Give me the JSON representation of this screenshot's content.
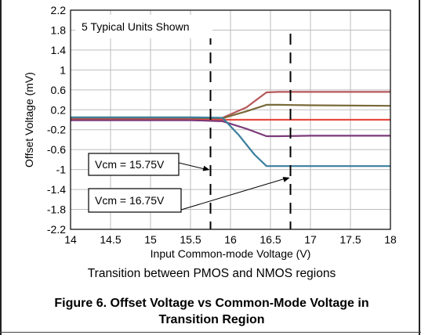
{
  "chart_data": {
    "type": "line",
    "title": "",
    "xlabel": "Input Common-mode Voltage (V)",
    "ylabel": "Offset Voltage (mV)",
    "xlim": [
      14,
      18
    ],
    "ylim": [
      -2.2,
      2.2
    ],
    "xticks": [
      14,
      14.5,
      15,
      15.5,
      16,
      16.5,
      17,
      17.5,
      18
    ],
    "xtick_labels": [
      "14",
      "14.5",
      "15",
      "15.5",
      "16",
      "16.5",
      "17",
      "17.5",
      "18"
    ],
    "yticks": [
      2.2,
      1.8,
      1.4,
      1,
      0.6,
      0.2,
      -0.2,
      -0.6,
      -1,
      -1.4,
      -1.8,
      -2.2
    ],
    "ytick_labels": [
      "2.2",
      "1.8",
      "1.4",
      "1",
      "0.6",
      "0.2",
      "-0.2",
      "-0.6",
      "-1",
      "-1.4",
      "-1.8",
      "-2.2"
    ],
    "grid": true,
    "annotation_box": "5 Typical Units Shown",
    "vlines": [
      {
        "x": 15.75,
        "label": "Vcm = 15.75V",
        "style": "dashed"
      },
      {
        "x": 16.75,
        "label": "Vcm = 16.75V",
        "style": "dashed"
      }
    ],
    "series": [
      {
        "color": "#b5585a",
        "x": [
          14,
          15.5,
          15.9,
          16.2,
          16.45,
          16.6,
          17,
          18
        ],
        "y": [
          0.02,
          0.02,
          0.04,
          0.25,
          0.55,
          0.56,
          0.56,
          0.56
        ]
      },
      {
        "color": "#7a6a3a",
        "x": [
          14,
          15.5,
          15.9,
          16.2,
          16.45,
          16.6,
          17,
          18
        ],
        "y": [
          0.01,
          0.01,
          0.03,
          0.17,
          0.3,
          0.3,
          0.29,
          0.28
        ]
      },
      {
        "color": "#e84a3f",
        "x": [
          14,
          15.5,
          15.9,
          16.2,
          16.5,
          17,
          18
        ],
        "y": [
          0.0,
          0.0,
          0.0,
          0.0,
          0.0,
          0.0,
          0.0
        ]
      },
      {
        "color": "#7b3a7a",
        "x": [
          14,
          15.5,
          15.9,
          16.2,
          16.45,
          16.6,
          17,
          18
        ],
        "y": [
          -0.01,
          -0.01,
          -0.03,
          -0.18,
          -0.33,
          -0.33,
          -0.32,
          -0.32
        ]
      },
      {
        "color": "#3b7f9e",
        "x": [
          14,
          15.5,
          15.9,
          16.1,
          16.3,
          16.45,
          16.6,
          17,
          18
        ],
        "y": [
          0.05,
          0.05,
          0.04,
          -0.3,
          -0.7,
          -0.93,
          -0.93,
          -0.93,
          -0.93
        ]
      }
    ]
  },
  "caption": {
    "subtitle": "Transition between PMOS and NMOS regions",
    "figure_title": "Figure 6. Offset Voltage vs Common-Mode Voltage in Transition Region"
  }
}
